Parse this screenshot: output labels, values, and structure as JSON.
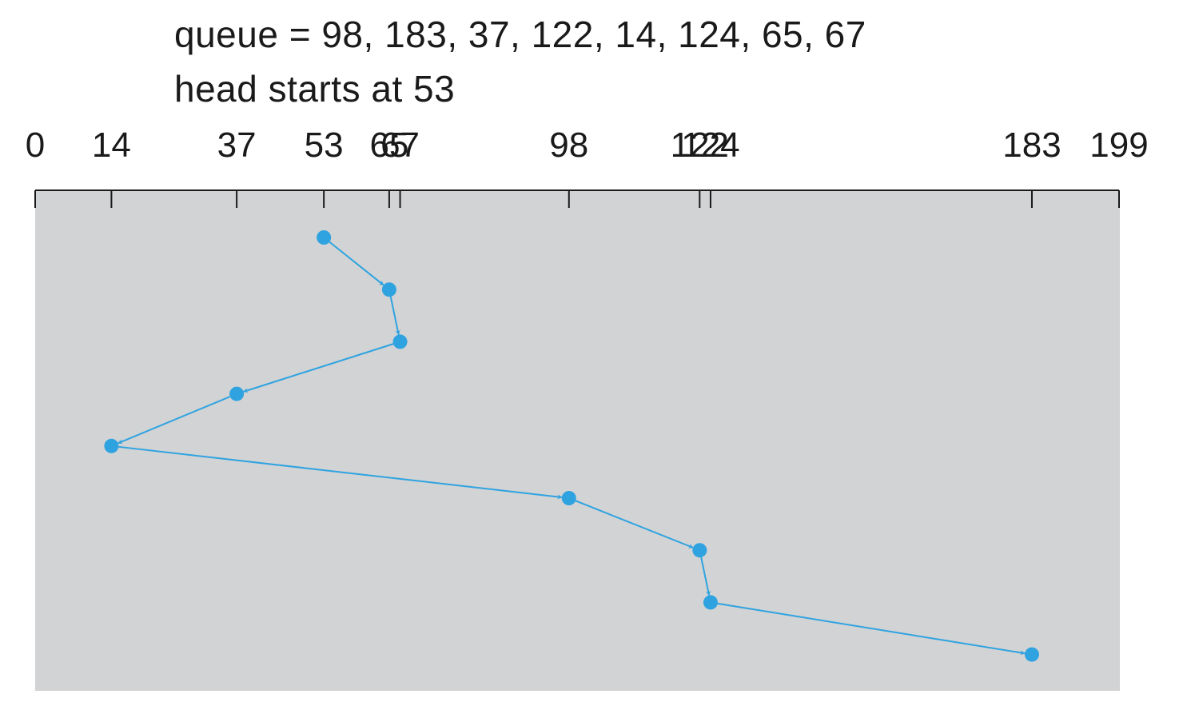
{
  "caption": {
    "queue_text": "queue = 98, 183, 37, 122, 14, 124, 65, 67",
    "head_text": "head starts at 53"
  },
  "axis": {
    "min": 0,
    "max": 199,
    "ticks": [
      0,
      14,
      37,
      53,
      65,
      67,
      98,
      122,
      124,
      183,
      199
    ],
    "tick_labels": [
      "0",
      "14",
      "37",
      "53",
      "65",
      "67",
      "98",
      "122",
      "124",
      "183",
      "199"
    ]
  },
  "path": {
    "head_start": 53,
    "sequence": [
      53,
      65,
      67,
      37,
      14,
      98,
      122,
      124,
      183
    ]
  },
  "colors": {
    "panel": "#d1d3d5",
    "axis": "#1a1a1a",
    "path": "#2fa3e0",
    "text": "#1a1a1a"
  }
}
